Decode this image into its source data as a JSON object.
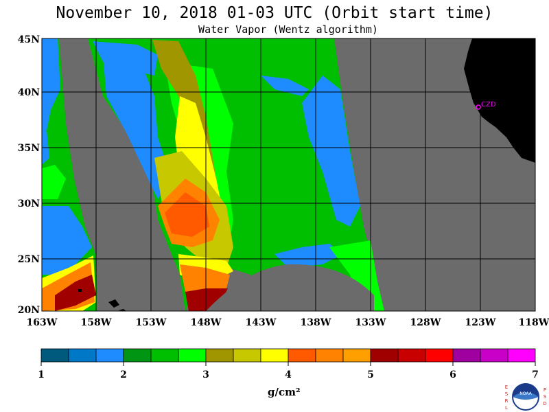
{
  "title": "November 10, 2018  01-03 UTC  (Orbit start time)",
  "subtitle": "Water Vapor (Wentz algorithm)",
  "lat_labels": [
    "45N",
    "40N",
    "35N",
    "30N",
    "25N",
    "20N"
  ],
  "lon_labels": [
    "163W",
    "158W",
    "153W",
    "148W",
    "143W",
    "138W",
    "133W",
    "128W",
    "123W",
    "118W"
  ],
  "station_label": "CZD",
  "colorbar": {
    "ticks": [
      "1",
      "2",
      "3",
      "4",
      "5",
      "6",
      "7"
    ],
    "units": "g/cm²",
    "colors": [
      "#005a7d",
      "#0078c8",
      "#1e8cff",
      "#009614",
      "#00be00",
      "#00ff00",
      "#a09600",
      "#c8c800",
      "#ffff00",
      "#ff5a00",
      "#ff8200",
      "#ffa000",
      "#a00000",
      "#c80000",
      "#ff0000",
      "#a000a0",
      "#c800c8",
      "#ff00ff"
    ]
  },
  "colors": {
    "background_gray": "#6b6b6b",
    "land": "#000000",
    "station": "#ff00ff"
  },
  "logo": {
    "left_letters": "ESRL",
    "right_letters": "PSD",
    "center_text": "NOAA"
  }
}
